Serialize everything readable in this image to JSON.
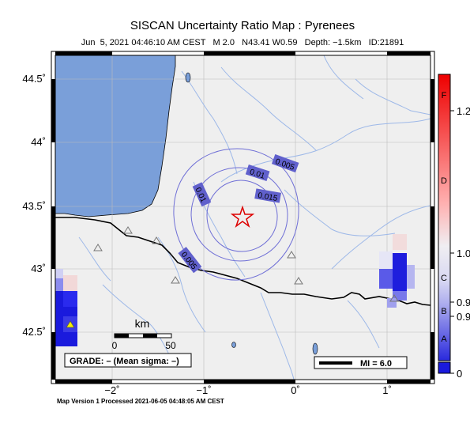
{
  "title": "SISCAN Uncertainty Ratio Map : Pyrenees",
  "subtitle": "Jun  5, 2021 04:46:10 AM CEST   M 2.0   N43.41 W0.59   Depth: −1.5km   ID:21891",
  "footer": "Map Version 1 Processed 2021-06-05 04:48:05 AM CEST",
  "grade_box": "GRADE: – (Mean sigma: –)",
  "mi_box": "MI = 6.0",
  "scale_bar": {
    "unit": "km",
    "ticks": [
      "0",
      "50"
    ]
  },
  "axes": {
    "lon_ticks": [
      "−2˚",
      "−1˚",
      "0˚",
      "1˚"
    ],
    "lat_ticks": [
      "44.5˚",
      "44˚",
      "43.5˚",
      "43˚",
      "42.5˚"
    ]
  },
  "contour_labels": [
    "0.005",
    "0.01",
    "0.015",
    "0.01",
    "0.005"
  ],
  "colorbar": {
    "grades": [
      "F",
      "D",
      "C",
      "B",
      "A"
    ],
    "values": [
      "1.2",
      "1.0",
      "0.9",
      "0.9",
      "0"
    ],
    "colors": {
      "top": "#ee0000",
      "bottom": "#1a1add",
      "mid": "#f0eef2"
    }
  },
  "colors": {
    "land": "#efefef",
    "sea": "#7a9fd9",
    "river": "#9db8e8",
    "contour": "#6f6fd6",
    "contour_label_bg": "#6060cc",
    "epicenter": "#dd0000"
  },
  "icons": {
    "epicenter": "star-icon",
    "station": "triangle-icon",
    "highlight_station": "yellow-triangle-icon"
  }
}
